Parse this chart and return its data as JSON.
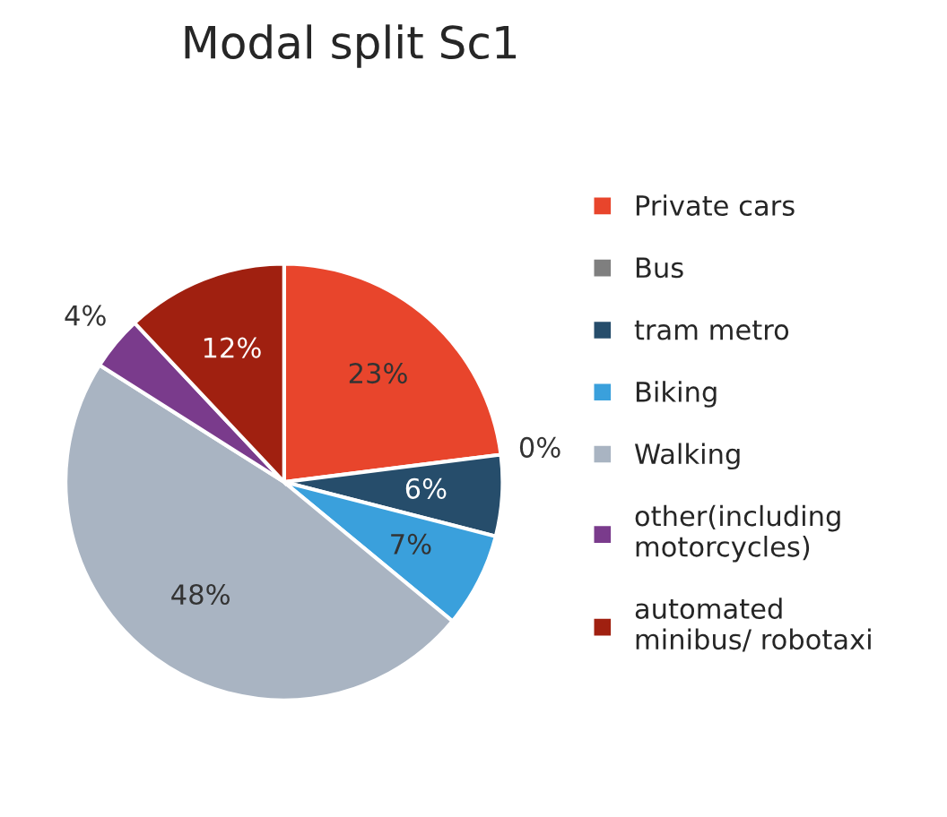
{
  "chart_data": {
    "type": "pie",
    "title": "Modal split Sc1",
    "categories": [
      "Private cars",
      "Bus",
      "tram metro",
      "Biking",
      "Walking",
      "other(including\nmotorcycles)",
      "automated\nminibus/ robotaxi"
    ],
    "values": [
      23,
      0,
      6,
      7,
      48,
      4,
      12
    ],
    "value_labels": [
      "23%",
      "0%",
      "6%",
      "7%",
      "48%",
      "4%",
      "12%"
    ],
    "colors": [
      "#e8452c",
      "#7f7f7f",
      "#264d6b",
      "#3aa0dc",
      "#a9b4c2",
      "#7a3b8c",
      "#a02010"
    ],
    "legend": "right"
  }
}
